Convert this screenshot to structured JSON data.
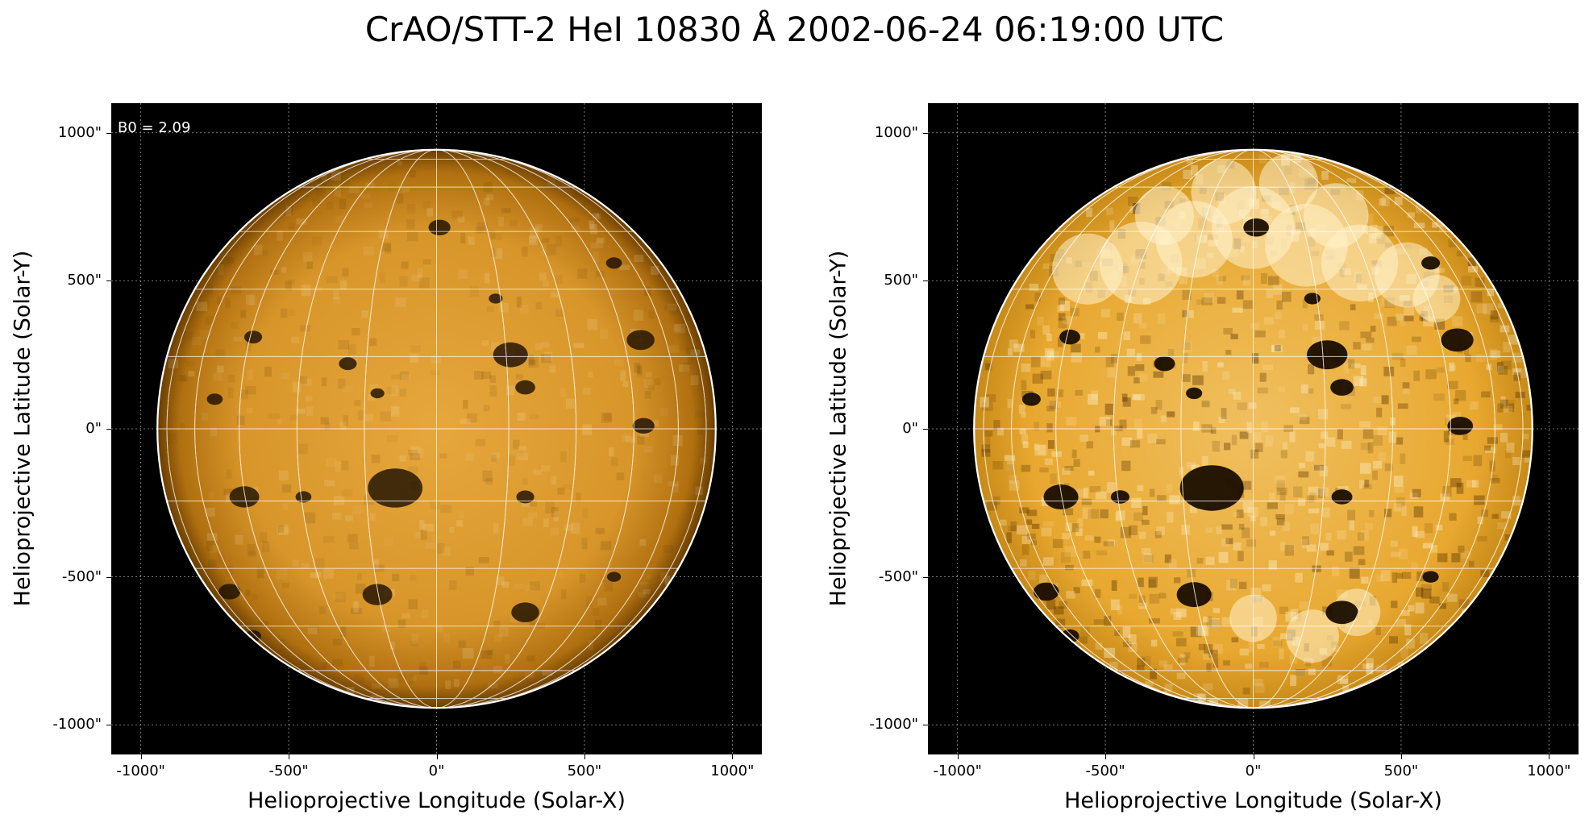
{
  "figure": {
    "title": "CrAO/STT-2 HeI 10830 Å 2002-06-24 06:19:00 UTC"
  },
  "panels": [
    {
      "id": "left",
      "annotation": "B0 = 2.09",
      "xlabel": "Helioprojective Longitude (Solar-X)",
      "ylabel": "Helioprojective Latitude (Solar-Y)",
      "contrast": "normal"
    },
    {
      "id": "right",
      "annotation": "",
      "xlabel": "Helioprojective Longitude (Solar-X)",
      "ylabel": "Helioprojective Latitude (Solar-Y)",
      "contrast": "enhanced"
    }
  ],
  "axes": {
    "x_ticks": [
      "-1000\"",
      "-500\"",
      "0\"",
      "500\"",
      "1000\""
    ],
    "y_ticks": [
      "1000\"",
      "500\"",
      "0\"",
      "-500\"",
      "-1000\""
    ],
    "x_tick_values": [
      -1000,
      -500,
      0,
      500,
      1000
    ],
    "y_tick_values": [
      1000,
      500,
      0,
      -500,
      -1000
    ],
    "xlim": [
      -1100,
      1100
    ],
    "ylim": [
      -1100,
      1100
    ]
  },
  "solar_disk": {
    "radius_arcsec": 944,
    "colormap_colors": [
      "#000000",
      "#b87000",
      "#e0a030",
      "#ffe8b0",
      "#ffffff"
    ]
  }
}
